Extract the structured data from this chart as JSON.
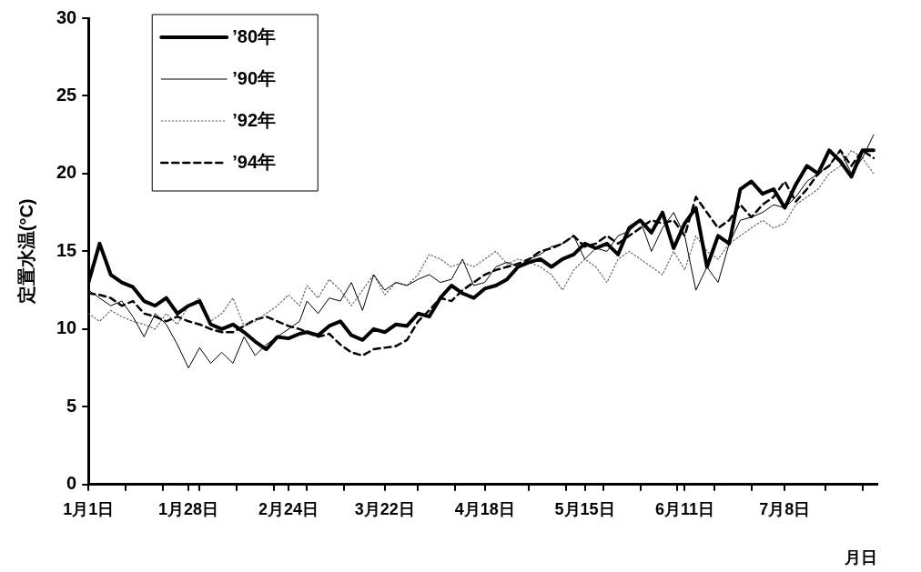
{
  "chart_data": {
    "type": "line",
    "xlabel": "月日",
    "ylabel": "定置水温(°C)",
    "x": [
      "--01-01",
      "--01-04",
      "--01-07",
      "--01-10",
      "--01-13",
      "--01-16",
      "--01-19",
      "--01-22",
      "--01-25",
      "--01-28",
      "--01-31",
      "--02-03",
      "--02-06",
      "--02-09",
      "--02-12",
      "--02-15",
      "--02-18",
      "--02-21",
      "--02-24",
      "--02-27",
      "--03-01",
      "--03-04",
      "--03-07",
      "--03-10",
      "--03-13",
      "--03-16",
      "--03-19",
      "--03-22",
      "--03-25",
      "--03-28",
      "--03-31",
      "--04-03",
      "--04-06",
      "--04-09",
      "--04-12",
      "--04-15",
      "--04-18",
      "--04-21",
      "--04-24",
      "--04-27",
      "--04-30",
      "--05-03",
      "--05-06",
      "--05-09",
      "--05-12",
      "--05-15",
      "--05-18",
      "--05-21",
      "--05-24",
      "--05-27",
      "--05-30",
      "--06-02",
      "--06-05",
      "--06-08",
      "--06-11",
      "--06-14",
      "--06-17",
      "--06-20",
      "--06-23",
      "--06-26",
      "--06-29",
      "--07-02",
      "--07-05",
      "--07-08",
      "--07-11",
      "--07-14",
      "--07-17",
      "--07-20",
      "--07-23",
      "--07-26",
      "--07-29",
      "--08-01"
    ],
    "series": [
      {
        "name": "’80年",
        "color": "#000000",
        "line_style": "solid",
        "values": [
          13.0,
          15.5,
          13.5,
          13.0,
          12.7,
          11.8,
          11.5,
          12.0,
          11.0,
          11.5,
          11.8,
          10.3,
          10.0,
          10.3,
          9.8,
          9.2,
          8.7,
          9.5,
          9.4,
          9.7,
          9.8,
          9.6,
          10.2,
          10.5,
          9.6,
          9.3,
          10.0,
          9.8,
          10.3,
          10.2,
          11.0,
          10.8,
          12.0,
          12.8,
          12.3,
          12.0,
          12.6,
          12.8,
          13.2,
          14.0,
          14.3,
          14.5,
          14.0,
          14.5,
          14.8,
          15.5,
          15.2,
          15.5,
          14.8,
          16.5,
          17.0,
          16.2,
          17.5,
          15.2,
          16.8,
          17.8,
          14.0,
          16.0,
          15.5,
          19.0,
          19.5,
          18.7,
          19.0,
          17.8,
          19.3,
          20.5,
          20.0,
          21.5,
          20.8,
          19.8,
          21.5,
          21.5
        ]
      },
      {
        "name": "’90年",
        "color": "#000000",
        "line_style": "solid",
        "values": [
          12.5,
          12.0,
          11.5,
          11.8,
          10.8,
          9.5,
          11.0,
          10.3,
          9.0,
          7.5,
          8.8,
          7.8,
          8.5,
          7.8,
          9.5,
          8.3,
          9.0,
          9.5,
          10.0,
          10.5,
          11.8,
          11.0,
          12.0,
          11.8,
          13.0,
          11.2,
          13.5,
          12.5,
          13.0,
          12.8,
          13.2,
          13.5,
          13.0,
          13.2,
          14.5,
          12.8,
          13.0,
          14.0,
          14.3,
          14.0,
          14.5,
          14.8,
          15.3,
          15.5,
          16.0,
          14.5,
          15.2,
          15.0,
          16.0,
          16.3,
          17.0,
          15.0,
          16.5,
          17.5,
          16.0,
          12.5,
          14.0,
          13.0,
          15.5,
          17.0,
          17.2,
          17.5,
          18.0,
          17.8,
          18.5,
          19.5,
          20.0,
          20.5,
          21.5,
          20.0,
          21.0,
          22.5
        ]
      },
      {
        "name": "’92年",
        "color": "#666666",
        "line_style": "dotted",
        "values": [
          11.0,
          10.5,
          11.2,
          10.8,
          10.5,
          10.3,
          10.0,
          11.0,
          10.3,
          11.5,
          12.0,
          10.5,
          11.0,
          12.0,
          10.2,
          10.5,
          11.0,
          11.5,
          12.2,
          11.5,
          12.8,
          12.0,
          13.2,
          12.5,
          11.5,
          12.5,
          13.5,
          12.2,
          13.0,
          12.8,
          13.5,
          14.8,
          14.5,
          14.0,
          14.3,
          14.0,
          14.5,
          15.0,
          14.2,
          14.5,
          14.3,
          14.0,
          13.5,
          12.5,
          13.8,
          14.5,
          14.0,
          13.0,
          14.5,
          15.0,
          14.5,
          14.0,
          13.5,
          15.0,
          13.8,
          16.0,
          15.0,
          14.5,
          15.5,
          16.0,
          16.5,
          17.0,
          16.5,
          16.8,
          18.0,
          18.5,
          19.0,
          20.0,
          20.5,
          21.5,
          21.0,
          20.0
        ]
      },
      {
        "name": "’94年",
        "color": "#000000",
        "line_style": "dashed",
        "values": [
          12.3,
          12.2,
          12.0,
          11.5,
          11.8,
          11.0,
          10.8,
          10.5,
          10.8,
          10.5,
          10.3,
          10.0,
          9.8,
          9.8,
          10.2,
          10.6,
          10.8,
          10.5,
          10.2,
          10.0,
          9.8,
          9.5,
          9.7,
          9.0,
          8.5,
          8.3,
          8.7,
          8.8,
          8.9,
          9.3,
          10.5,
          11.2,
          12.0,
          11.8,
          12.5,
          13.0,
          13.5,
          13.8,
          14.0,
          14.2,
          14.5,
          15.0,
          15.2,
          15.5,
          16.0,
          15.3,
          15.5,
          16.0,
          15.5,
          16.0,
          16.5,
          17.0,
          16.8,
          17.0,
          16.0,
          18.5,
          17.5,
          16.5,
          17.0,
          18.0,
          17.2,
          18.0,
          18.5,
          19.5,
          18.2,
          19.0,
          20.0,
          20.5,
          21.5,
          20.5,
          21.5,
          21.0
        ]
      }
    ],
    "xlim": [
      "--01-01",
      "--08-02"
    ],
    "xticks": [
      {
        "value": "--01-01",
        "label": "1月1日"
      },
      {
        "value": "--01-28",
        "label": "1月28日"
      },
      {
        "value": "--02-24",
        "label": "2月24日"
      },
      {
        "value": "--03-22",
        "label": "3月22日"
      },
      {
        "value": "--04-18",
        "label": "4月18日"
      },
      {
        "value": "--05-15",
        "label": "5月15日"
      },
      {
        "value": "--06-11",
        "label": "6月11日"
      },
      {
        "value": "--07-08",
        "label": "7月8日"
      },
      {
        "value": "--01-11",
        "label": null
      },
      {
        "value": "--01-21",
        "label": null
      },
      {
        "value": "--01-31",
        "label": null
      },
      {
        "value": "--02-10",
        "label": null
      },
      {
        "value": "--02-20",
        "label": null
      },
      {
        "value": "--03-01",
        "label": null
      },
      {
        "value": "--03-11",
        "label": null
      },
      {
        "value": "--03-31",
        "label": null
      },
      {
        "value": "--04-10",
        "label": null
      },
      {
        "value": "--04-30",
        "label": null
      },
      {
        "value": "--05-10",
        "label": null
      },
      {
        "value": "--05-20",
        "label": null
      },
      {
        "value": "--05-30",
        "label": null
      },
      {
        "value": "--06-09",
        "label": null
      },
      {
        "value": "--06-19",
        "label": null
      },
      {
        "value": "--06-29",
        "label": null
      },
      {
        "value": "--07-19",
        "label": null
      },
      {
        "value": "--07-29",
        "label": null
      }
    ],
    "ylim": [
      0,
      30
    ],
    "yticks": [
      0,
      5,
      10,
      15,
      20,
      25,
      30
    ],
    "grid": false,
    "legend": "top left",
    "marker": "none"
  }
}
